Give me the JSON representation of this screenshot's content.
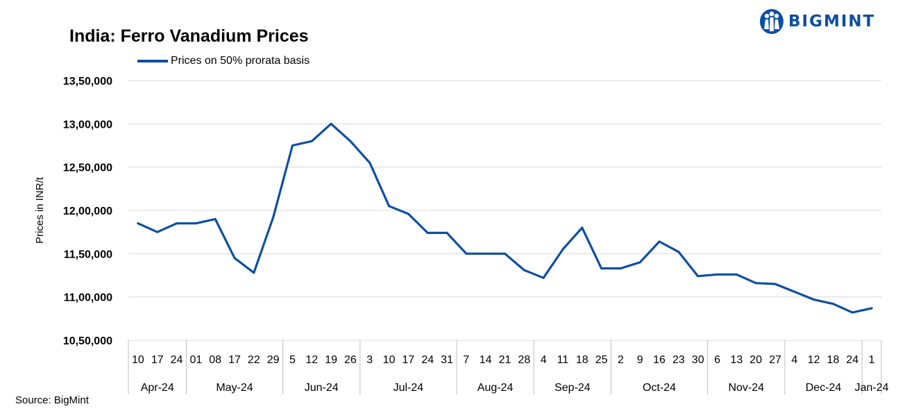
{
  "title": "India: Ferro Vanadium Prices",
  "legend": {
    "label": "Prices on 50% prorata basis",
    "color": "#0b4ea2"
  },
  "logo": {
    "text": "BIGMINT",
    "color": "#0b4ea2"
  },
  "source": "Source: BigMint",
  "chart_data": {
    "type": "line",
    "title": "India: Ferro Vanadium Prices",
    "ylabel": "Prices in INR/t",
    "xlabel": "",
    "ylim": [
      1050000,
      1350000
    ],
    "yticks": [
      1050000,
      1100000,
      1150000,
      1200000,
      1250000,
      1300000,
      1350000
    ],
    "ytick_labels": [
      "10,50,000",
      "11,00,000",
      "11,50,000",
      "12,00,000",
      "12,50,000",
      "13,00,000",
      "13,50,000"
    ],
    "grid": true,
    "legend_position": "top-left",
    "x_days": [
      "10",
      "17",
      "24",
      "01",
      "08",
      "17",
      "22",
      "29",
      "5",
      "12",
      "19",
      "26",
      "3",
      "10",
      "17",
      "24",
      "31",
      "7",
      "14",
      "21",
      "28",
      "4",
      "11",
      "18",
      "25",
      "2",
      "9",
      "16",
      "23",
      "30",
      "6",
      "13",
      "20",
      "27",
      "4",
      "12",
      "18",
      "24",
      "1"
    ],
    "months": [
      {
        "label": "Apr-24",
        "count": 3
      },
      {
        "label": "May-24",
        "count": 5
      },
      {
        "label": "Jun-24",
        "count": 4
      },
      {
        "label": "Jul-24",
        "count": 5
      },
      {
        "label": "Aug-24",
        "count": 4
      },
      {
        "label": "Sep-24",
        "count": 4
      },
      {
        "label": "Oct-24",
        "count": 5
      },
      {
        "label": "Nov-24",
        "count": 4
      },
      {
        "label": "Dec-24",
        "count": 4
      },
      {
        "label": "Jan-24",
        "count": 1
      }
    ],
    "series": [
      {
        "name": "Prices on 50% prorata basis",
        "color": "#0b4ea2",
        "values": [
          1185000,
          1175000,
          1185000,
          1185000,
          1190000,
          1145000,
          1128000,
          1192000,
          1275000,
          1280000,
          1300000,
          1280000,
          1255000,
          1205000,
          1196000,
          1174000,
          1174000,
          1150000,
          1150000,
          1150000,
          1131000,
          1122000,
          1155000,
          1180000,
          1133000,
          1133000,
          1140000,
          1164000,
          1152000,
          1124000,
          1126000,
          1126000,
          1116000,
          1115000,
          1106000,
          1097000,
          1092000,
          1082000,
          1087000
        ]
      }
    ]
  }
}
